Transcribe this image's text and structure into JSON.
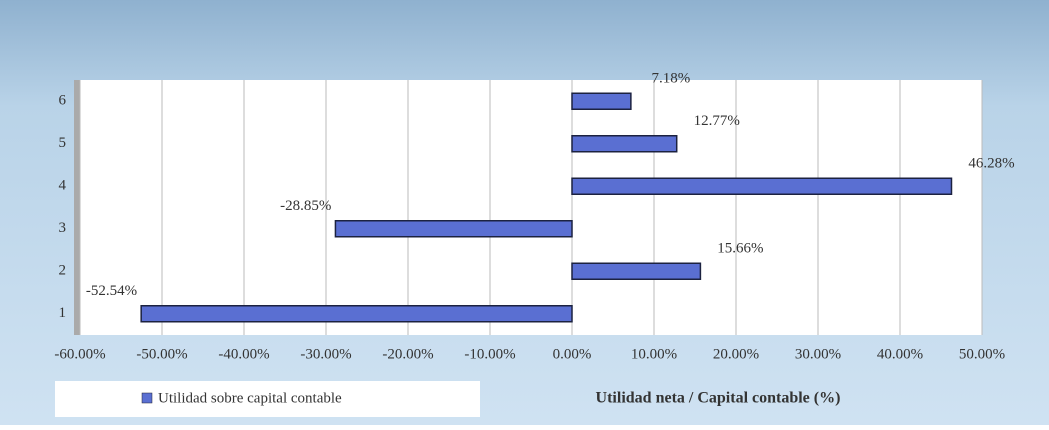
{
  "chart_data": {
    "type": "hbar",
    "categories": [
      "1",
      "2",
      "3",
      "4",
      "5",
      "6"
    ],
    "series": [
      {
        "name": "Utilidad sobre capital contable",
        "color": "#5a6fd2",
        "values": [
          -52.54,
          15.66,
          -28.85,
          46.28,
          12.77,
          7.18
        ],
        "value_labels": [
          "-52.54%",
          "15.66%",
          "-28.85%",
          "46.28%",
          "12.77%",
          "7.18%"
        ]
      }
    ],
    "xlabel": "Utilidad neta / Capital contable (%)",
    "xlim": [
      -60,
      50
    ],
    "xticks": [
      {
        "value": -60,
        "label": "-60.00%"
      },
      {
        "value": -50,
        "label": "-50.00%"
      },
      {
        "value": -40,
        "label": "-40.00%"
      },
      {
        "value": -30,
        "label": "-30.00%"
      },
      {
        "value": -20,
        "label": "-20.00%"
      },
      {
        "value": -10,
        "label": "-10.00%"
      },
      {
        "value": 0,
        "label": "0.00%"
      },
      {
        "value": 10,
        "label": "10.00%"
      },
      {
        "value": 20,
        "label": "20.00%"
      },
      {
        "value": 30,
        "label": "30.00%"
      },
      {
        "value": 40,
        "label": "40.00%"
      },
      {
        "value": 50,
        "label": "50.00%"
      }
    ],
    "grid": true
  }
}
